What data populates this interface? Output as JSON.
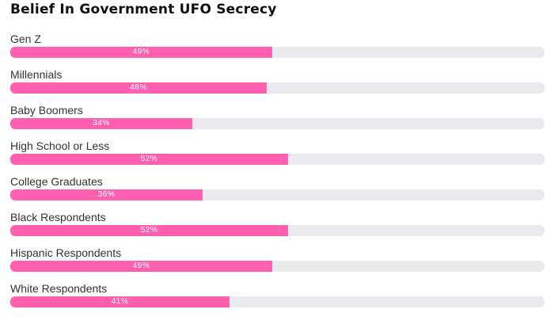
{
  "chart_data": {
    "type": "bar",
    "orientation": "horizontal",
    "title": "Belief In Government UFO Secrecy",
    "xlim": [
      0,
      100
    ],
    "grid": false,
    "legend": "none",
    "categories": [
      "Gen Z",
      "Millennials",
      "Baby Boomers",
      "High School or Less",
      "College Graduates",
      "Black Respondents",
      "Hispanic Respondents",
      "White Respondents"
    ],
    "values": [
      49,
      48,
      34,
      52,
      36,
      52,
      49,
      41
    ],
    "value_labels": [
      "49%",
      "48%",
      "34%",
      "52%",
      "36%",
      "52%",
      "49%",
      "41%"
    ],
    "colors": {
      "bar": "#ff5fae",
      "track": "#e9eaee"
    }
  }
}
